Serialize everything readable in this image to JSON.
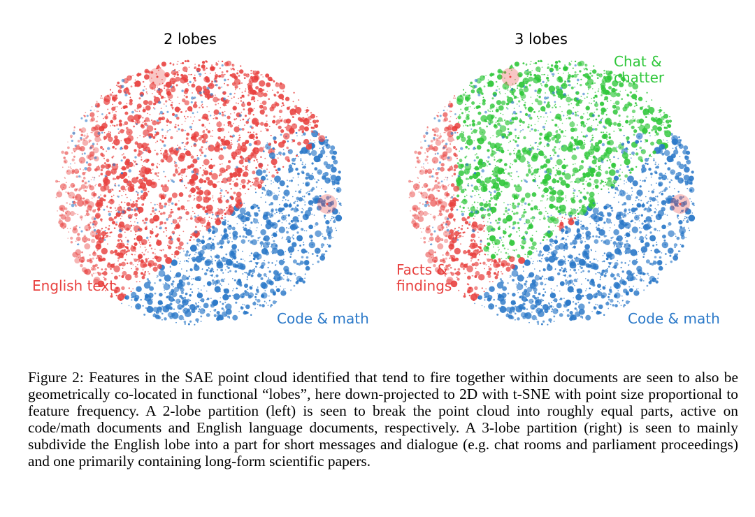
{
  "figure": {
    "panels": [
      {
        "title": "2 lobes",
        "labels": {
          "english": "English text",
          "code": "Code & math"
        }
      },
      {
        "title": "3 lobes",
        "labels": {
          "chat_line1": "Chat &",
          "chat_line2": "chatter",
          "facts_line1": "Facts &",
          "facts_line2": "findings",
          "code": "Code & math"
        }
      }
    ],
    "caption": "Figure 2: Features in the SAE point cloud identified that tend to fire together within documents are seen to also be geometrically co-located in functional “lobes”, here down-projected to 2D with t-SNE with point size proportional to feature frequency. A 2-lobe partition (left) is seen to break the point cloud into roughly equal parts, active on code/math documents and English language documents, respectively. A 3-lobe partition (right) is seen to mainly subdivide the English lobe into a part for short messages and dialogue (e.g. chat rooms and parliament proceedings) and one primarily containing long-form scientific papers."
  },
  "colors": {
    "red": "#e8413f",
    "blue": "#2a78c8",
    "green": "#2fc73a"
  }
}
